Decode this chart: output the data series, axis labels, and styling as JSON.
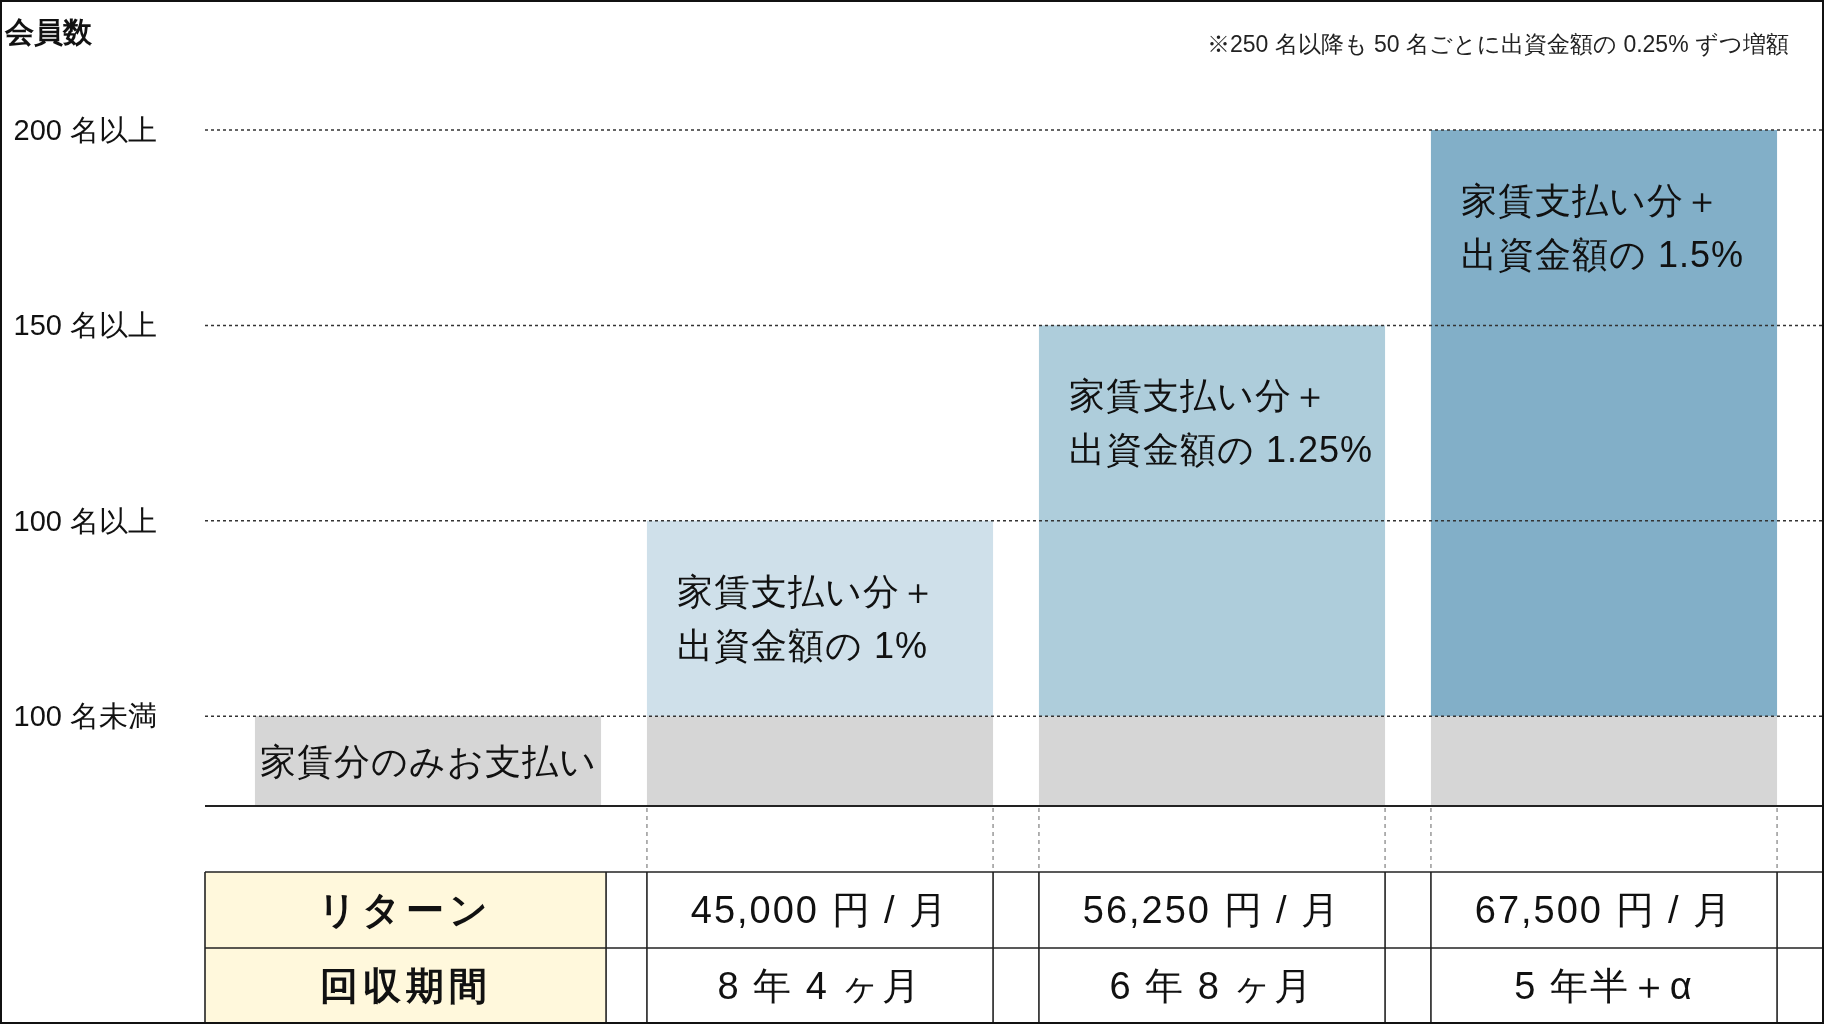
{
  "chart_data": [
    {
      "type": "bar",
      "ylabel": "会員数",
      "annotations": [
        "※250 名以降も 50 名ごとに出資金額の 0.25% ずつ増額"
      ],
      "categories": [
        null,
        null,
        null,
        null
      ],
      "stacked": true,
      "ylim": [
        27,
        200
      ],
      "yticks": [
        {
          "value": 100,
          "label": "100 名以上"
        },
        {
          "value": 150,
          "label": "150 名以上"
        },
        {
          "value": 200,
          "label": "200 名以上"
        }
      ],
      "grid": "y",
      "ref_lines": [
        {
          "axis": "y",
          "value": 50,
          "label": "100 名未満",
          "line_style": "dotted",
          "color": "#333333"
        }
      ],
      "series": [
        {
          "color": "#d6d6d6",
          "values": [
            50,
            50,
            50,
            50
          ],
          "value_labels": [
            "家賃分のみお支払い",
            null,
            null,
            null
          ]
        },
        {
          "colors": [
            null,
            "#cfe0ea",
            "#aecddb",
            "#82afc8"
          ],
          "values": [
            null,
            50,
            100,
            150
          ],
          "value_labels": [
            null,
            "家賃支払い分＋出資金額の 1%",
            "家賃支払い分＋出資金額の 1.25%",
            "家賃支払い分＋出資金額の 1.5%"
          ]
        }
      ]
    },
    {
      "type": "other",
      "annotations": [
        "リターン",
        "45,000 円 / 月",
        "56,250 円 / 月",
        "67,500 円 / 月",
        "回収期間",
        "8 年 4 ヶ月",
        "6 年 8 ヶ月",
        "5 年半＋α"
      ]
    }
  ]
}
